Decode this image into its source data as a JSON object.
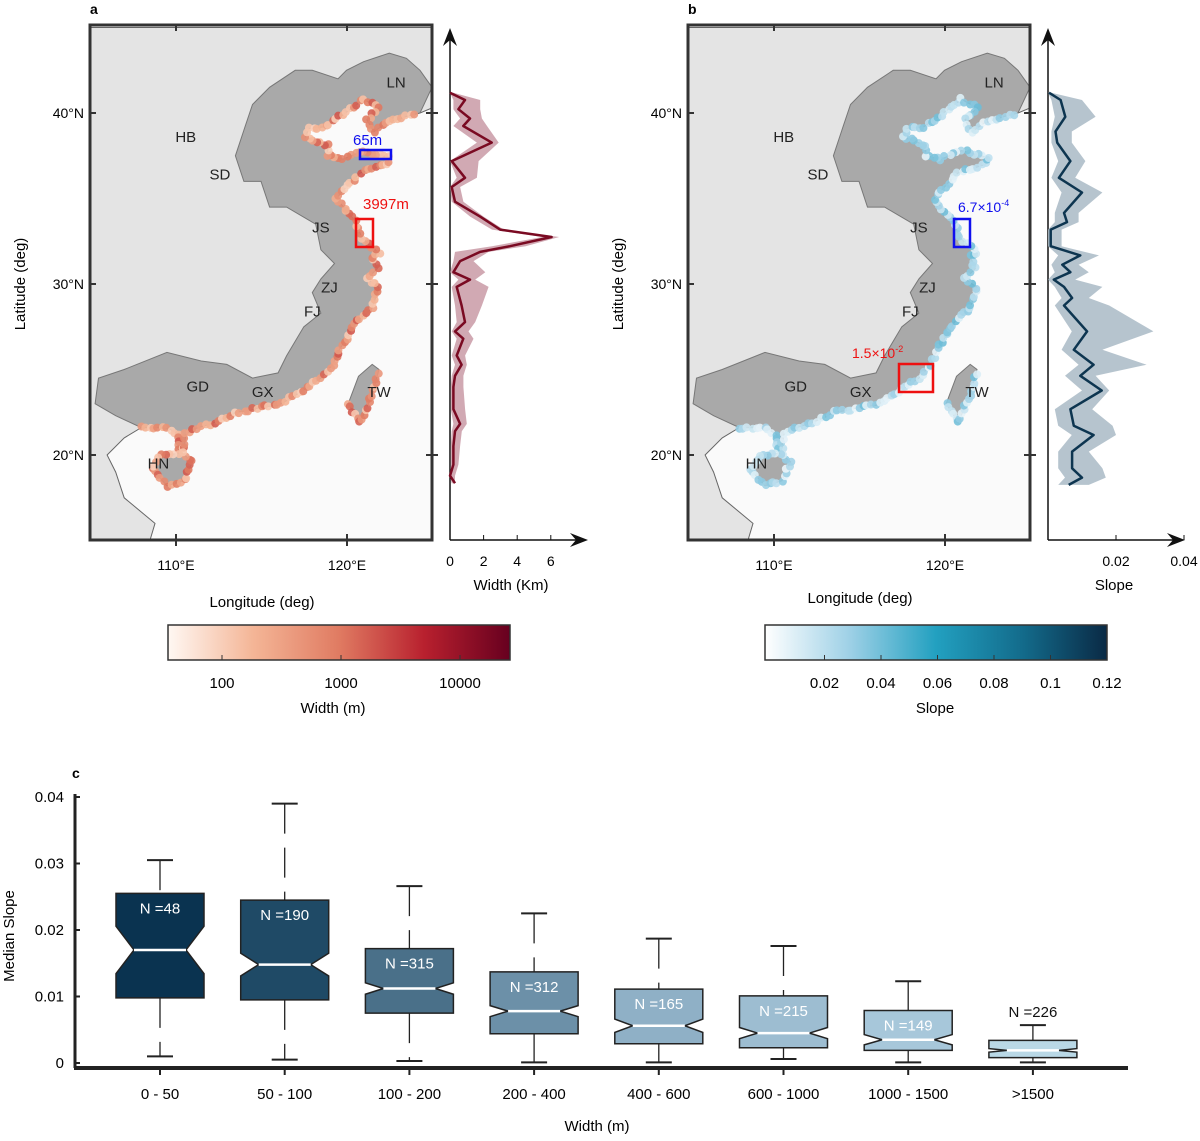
{
  "panel_labels": {
    "a": "a",
    "b": "b",
    "c": "c"
  },
  "province_labels": [
    "LN",
    "HB",
    "SD",
    "JS",
    "ZJ",
    "FJ",
    "GD",
    "GX",
    "HN",
    "TW"
  ],
  "map_axes": {
    "ylabel": "Latitude (deg)",
    "xlabel": "Longitude (deg)",
    "lat_ticks": [
      "40°N",
      "30°N",
      "20°N"
    ],
    "lon_ticks": [
      "110°E",
      "120°E"
    ]
  },
  "panel_a": {
    "annotations": {
      "blue": "65m",
      "red": "3997m"
    },
    "colorbar": {
      "label": "Width (m)",
      "ticks": [
        "100",
        "1000",
        "10000"
      ],
      "scale": "log",
      "colors": [
        "#fff8f3",
        "#f4b596",
        "#e07b62",
        "#b8202e",
        "#67001f"
      ]
    }
  },
  "panel_b": {
    "annotations": {
      "blue_base": "6.7×10",
      "blue_exp": "-4",
      "red_base": "1.5×10",
      "red_exp": "-2"
    },
    "colorbar": {
      "label": "Slope",
      "ticks": [
        "0.02",
        "0.04",
        "0.06",
        "0.08",
        "0.1",
        "0.12"
      ],
      "colors": [
        "#ffffff",
        "#9dd0e6",
        "#22a0c0",
        "#136c8c",
        "#0a2a45"
      ]
    }
  },
  "chart_data": [
    {
      "type": "line",
      "panel": "a-profile",
      "xlabel": "Width (Km)",
      "x_ticks": [
        "0",
        "2",
        "4",
        "6"
      ],
      "xlim": [
        0,
        7.9
      ],
      "ylim": [
        15,
        45
      ],
      "line_color": "#7a0a22",
      "band_color": "#c99aa6",
      "lat": [
        41.19,
        40.76,
        40.22,
        39.68,
        39.24,
        38.27,
        37.19,
        36.21,
        35.67,
        34.81,
        33.94,
        33.18,
        32.75,
        32.21,
        31.88,
        31.34,
        30.69,
        30.26,
        29.83,
        28.74,
        27.77,
        27.23,
        26.8,
        25.82,
        25.28,
        24.63,
        23.98,
        22.68,
        21.82,
        21.39,
        20.52,
        19.44,
        18.79,
        18.35
      ],
      "width_km": [
        0,
        0.89,
        0.5,
        1.19,
        0.79,
        2.48,
        0.1,
        0.89,
        0.1,
        0.3,
        1.79,
        2.98,
        6.05,
        3.57,
        1.79,
        0.6,
        0.2,
        1.19,
        0.4,
        0.69,
        0.89,
        0.3,
        0.79,
        0.4,
        0.69,
        0.3,
        0.2,
        0.2,
        0.6,
        0.3,
        0.2,
        0.2,
        0,
        0.3
      ],
      "band_upper": [
        0.2,
        1.8,
        1.8,
        1.9,
        2.2,
        2.9,
        1.7,
        1.6,
        0.6,
        0.8,
        2.0,
        3.2,
        6.5,
        4.5,
        2.3,
        1.4,
        2.1,
        1.5,
        2.3,
        1.9,
        1.5,
        1.1,
        1.4,
        0.9,
        1.0,
        0.8,
        0.8,
        0.9,
        1.0,
        0.7,
        0.6,
        0.5,
        0.3,
        0.3
      ],
      "band_lower": [
        0,
        0.2,
        0.2,
        0.6,
        0.2,
        1.6,
        0,
        0.4,
        0,
        0.1,
        1.2,
        2.5,
        5.5,
        2.5,
        0.3,
        0.2,
        0,
        0.5,
        0.1,
        0.3,
        0.4,
        0.1,
        0.4,
        0.1,
        0.3,
        0.1,
        0.05,
        0.05,
        0.2,
        0.1,
        0.05,
        0.05,
        0,
        0.1
      ]
    },
    {
      "type": "line",
      "panel": "b-profile",
      "xlabel": "Slope",
      "x_ticks": [
        "0.02",
        "0.04"
      ],
      "xlim": [
        0,
        0.04
      ],
      "ylim": [
        15,
        45
      ],
      "line_color": "#0d3550",
      "band_color": "#a9bac6",
      "lat": [
        41.19,
        40.76,
        39.78,
        38.92,
        38.27,
        37.19,
        36.21,
        35.35,
        34.16,
        33.62,
        33.18,
        32.21,
        31.67,
        31.13,
        30.69,
        30.26,
        29.83,
        29.18,
        28.74,
        27.23,
        26.15,
        25.28,
        24.63,
        23.77,
        22.68,
        21.71,
        21.17,
        20.2,
        19.22,
        18.68,
        18.25
      ],
      "slope": [
        0.0003,
        0.0037,
        0.0051,
        0.0022,
        0.0027,
        0.0066,
        0.0032,
        0.01,
        0.0047,
        0.0056,
        0.0008,
        0.0008,
        0.0095,
        0.0042,
        0.0066,
        0.0017,
        0.0047,
        0.0071,
        0.0047,
        0.0115,
        0.0076,
        0.0134,
        0.0095,
        0.0158,
        0.0066,
        0.0076,
        0.0134,
        0.0071,
        0.0071,
        0.01,
        0.0061
      ],
      "band_upper": [
        0.001,
        0.01,
        0.014,
        0.007,
        0.007,
        0.011,
        0.008,
        0.016,
        0.009,
        0.009,
        0.004,
        0.004,
        0.015,
        0.009,
        0.012,
        0.008,
        0.016,
        0.012,
        0.018,
        0.031,
        0.016,
        0.029,
        0.014,
        0.018,
        0.013,
        0.019,
        0.02,
        0.012,
        0.016,
        0.017,
        0.012
      ],
      "band_lower": [
        0,
        0.001,
        0.002,
        0.001,
        0.001,
        0.003,
        0.001,
        0.004,
        0.002,
        0.002,
        0,
        0,
        0.003,
        0.001,
        0.002,
        0,
        0.002,
        0.004,
        0.002,
        0.007,
        0.004,
        0.009,
        0.005,
        0.01,
        0.002,
        0.003,
        0.007,
        0.003,
        0.003,
        0.005,
        0.003
      ]
    },
    {
      "type": "box",
      "panel": "c",
      "xlabel": "Width (m)",
      "ylabel": "Median Slope",
      "ylim": [
        0,
        0.04
      ],
      "y_ticks": [
        "0",
        "0.01",
        "0.02",
        "0.03",
        "0.04"
      ],
      "categories": [
        "0 - 50",
        "50 - 100",
        "100 - 200",
        "200 - 400",
        "400 - 600",
        "600 - 1000",
        "1000 - 1500",
        ">1500"
      ],
      "n_labels": [
        "N =48",
        "N =190",
        "N =315",
        "N =312",
        "N =165",
        "N =215",
        "N =149",
        "N =226"
      ],
      "n": [
        48,
        190,
        315,
        312,
        165,
        215,
        149,
        226
      ],
      "whisker_low": [
        0.001,
        0.0005,
        0.0003,
        0.0001,
        0.0001,
        0.0006,
        0.0001,
        0.0001
      ],
      "q1": [
        0.0098,
        0.0095,
        0.0075,
        0.0044,
        0.0029,
        0.0023,
        0.0019,
        0.0008
      ],
      "median": [
        0.017,
        0.0148,
        0.0112,
        0.0078,
        0.0056,
        0.0045,
        0.0035,
        0.0019
      ],
      "q3": [
        0.0255,
        0.0245,
        0.0172,
        0.0137,
        0.0111,
        0.0101,
        0.0079,
        0.0034
      ],
      "whisker_high": [
        0.0305,
        0.039,
        0.0266,
        0.0225,
        0.0187,
        0.0176,
        0.0123,
        0.0057
      ],
      "colors": [
        "#0a3350",
        "#1f4a66",
        "#4a7089",
        "#6c90a8",
        "#8fb0c6",
        "#9dbdd1",
        "#a7c7da",
        "#b9d8e6"
      ]
    }
  ]
}
